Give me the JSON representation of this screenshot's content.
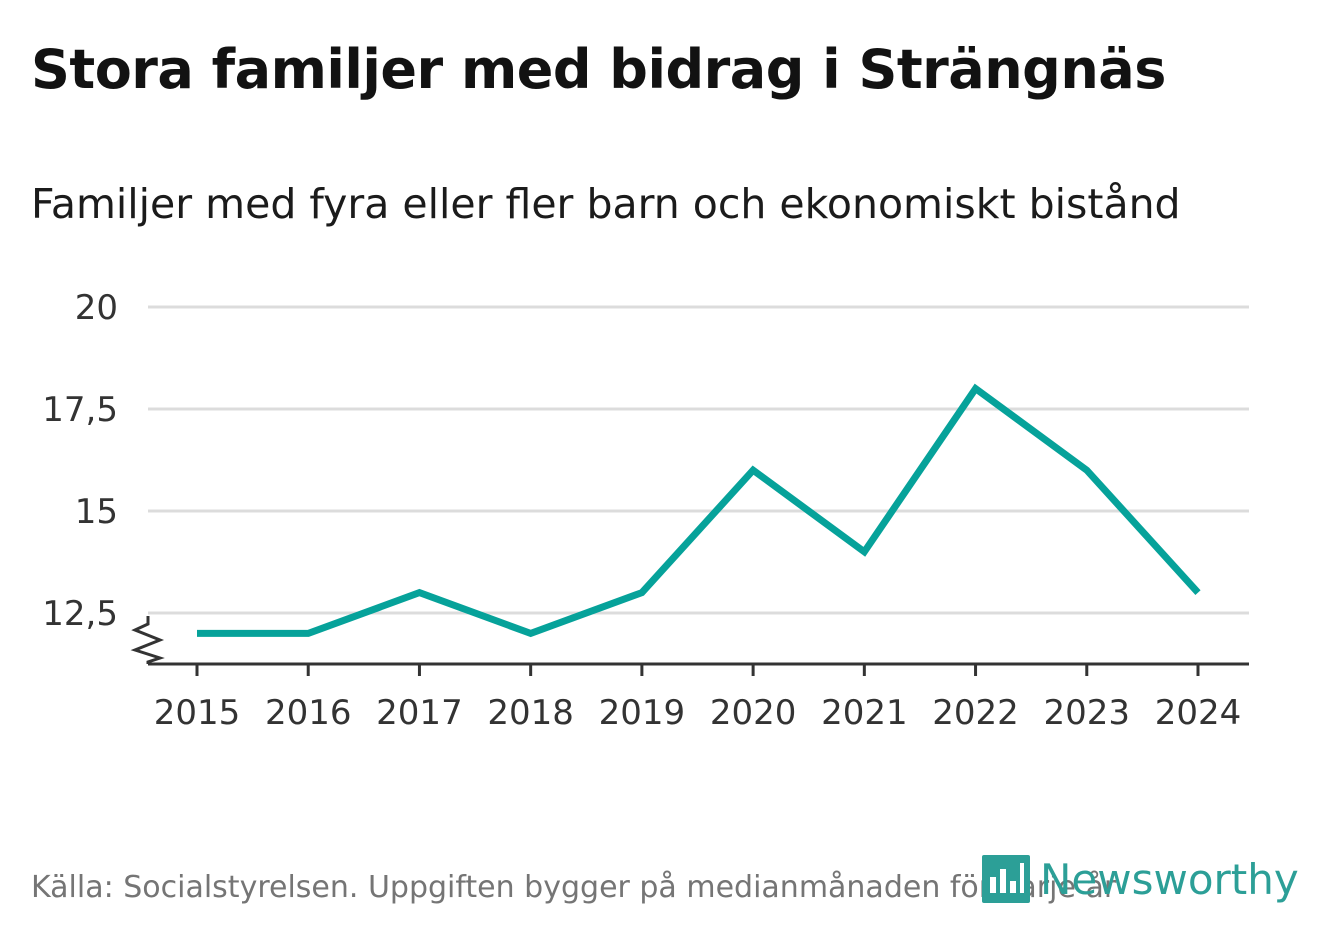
{
  "chart_data": {
    "type": "line",
    "title": "Stora familjer med bidrag i Strängnäs",
    "subtitle": "Familjer med fyra eller fler barn och ekonomiskt bistånd",
    "categories": [
      "2015",
      "2016",
      "2017",
      "2018",
      "2019",
      "2020",
      "2021",
      "2022",
      "2023",
      "2024"
    ],
    "values": [
      12,
      12,
      13,
      12,
      13,
      16,
      14,
      18,
      16,
      13
    ],
    "yticks": [
      12.5,
      15,
      17.5,
      20
    ],
    "ytick_labels": [
      "12,5",
      "15",
      "17,5",
      "20"
    ],
    "ylim": [
      11.25,
      20
    ],
    "y_axis_break": true,
    "line_color": "#06a29a",
    "grid": true,
    "xlabel": "",
    "ylabel": ""
  },
  "footer": {
    "source": "Källa: Socialstyrelsen. Uppgiften bygger på medianmånaden för varje år",
    "brand": "Newsworthy",
    "brand_color": "#2c9f97",
    "brand_icon": "newsworthy-logo-icon"
  }
}
